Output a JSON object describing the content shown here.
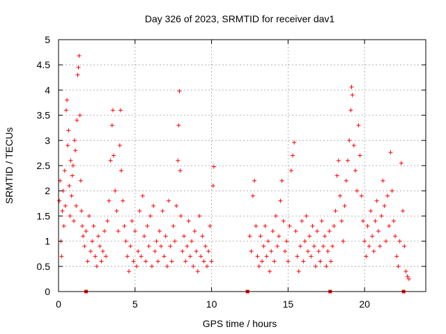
{
  "chart_data": {
    "type": "scatter",
    "title": "Day 326 of 2023, SRMTID for receiver dav1",
    "xlabel": "GPS time / hours",
    "ylabel": "SRMTID / TECUs",
    "xlim": [
      0,
      24
    ],
    "ylim": [
      0,
      5
    ],
    "x_ticks": [
      0,
      5,
      10,
      15,
      20
    ],
    "x_tick_labels": [
      "0",
      "5",
      "10",
      "15",
      "20"
    ],
    "y_ticks": [
      0,
      0.5,
      1,
      1.5,
      2,
      2.5,
      3,
      3.5,
      4,
      4.5,
      5
    ],
    "y_tick_labels": [
      "0",
      "0.5",
      "1",
      "1.5",
      "2",
      "2.5",
      "3",
      "3.5",
      "4",
      "4.5",
      "5"
    ],
    "grid": true,
    "marker": "+",
    "color": "#ff0000",
    "series": [
      {
        "name": "SRMTID",
        "points": [
          [
            0.05,
            1.8
          ],
          [
            0.1,
            2.2
          ],
          [
            0.15,
            1.0
          ],
          [
            0.2,
            0.7
          ],
          [
            0.25,
            1.6
          ],
          [
            0.3,
            2.0
          ],
          [
            0.35,
            1.3
          ],
          [
            0.4,
            2.4
          ],
          [
            0.45,
            1.7
          ],
          [
            0.5,
            3.6
          ],
          [
            0.55,
            3.8
          ],
          [
            0.6,
            2.9
          ],
          [
            0.65,
            3.2
          ],
          [
            0.7,
            2.1
          ],
          [
            0.75,
            1.5
          ],
          [
            0.8,
            2.6
          ],
          [
            0.85,
            1.9
          ],
          [
            0.9,
            2.3
          ],
          [
            0.95,
            2.5
          ],
          [
            1.0,
            1.4
          ],
          [
            1.05,
            3.0
          ],
          [
            1.1,
            2.8
          ],
          [
            1.15,
            1.7
          ],
          [
            1.2,
            3.4
          ],
          [
            1.25,
            4.3
          ],
          [
            1.3,
            4.45
          ],
          [
            1.35,
            4.68
          ],
          [
            1.4,
            3.5
          ],
          [
            1.45,
            2.2
          ],
          [
            1.5,
            1.6
          ],
          [
            1.55,
            1.3
          ],
          [
            1.6,
            1.1
          ],
          [
            1.7,
            0.9
          ],
          [
            1.8,
            1.2
          ],
          [
            1.9,
            0.6
          ],
          [
            2.0,
            1.5
          ],
          [
            2.1,
            0.8
          ],
          [
            2.2,
            1.0
          ],
          [
            2.3,
            1.3
          ],
          [
            2.4,
            0.7
          ],
          [
            2.5,
            0.5
          ],
          [
            2.6,
            1.1
          ],
          [
            2.7,
            0.9
          ],
          [
            2.8,
            0.6
          ],
          [
            2.9,
            0.8
          ],
          [
            3.0,
            1.2
          ],
          [
            3.1,
            0.7
          ],
          [
            3.2,
            1.4
          ],
          [
            3.3,
            1.8
          ],
          [
            3.4,
            2.6
          ],
          [
            3.5,
            3.3
          ],
          [
            3.55,
            3.6
          ],
          [
            3.6,
            2.7
          ],
          [
            3.7,
            2.0
          ],
          [
            3.8,
            1.6
          ],
          [
            3.9,
            1.2
          ],
          [
            4.0,
            2.9
          ],
          [
            4.05,
            3.6
          ],
          [
            4.1,
            2.4
          ],
          [
            4.2,
            1.8
          ],
          [
            4.3,
            1.3
          ],
          [
            4.4,
            1.0
          ],
          [
            4.5,
            0.7
          ],
          [
            4.6,
            0.4
          ],
          [
            4.7,
            0.9
          ],
          [
            4.8,
            1.4
          ],
          [
            4.9,
            0.6
          ],
          [
            5.0,
            1.2
          ],
          [
            5.1,
            0.5
          ],
          [
            5.2,
            0.8
          ],
          [
            5.3,
            1.6
          ],
          [
            5.4,
            0.7
          ],
          [
            5.5,
            1.9
          ],
          [
            5.6,
            1.1
          ],
          [
            5.7,
            0.6
          ],
          [
            5.8,
            1.3
          ],
          [
            5.9,
            0.9
          ],
          [
            6.0,
            1.5
          ],
          [
            6.1,
            0.5
          ],
          [
            6.2,
            1.7
          ],
          [
            6.3,
            0.8
          ],
          [
            6.4,
            1.0
          ],
          [
            6.5,
            0.6
          ],
          [
            6.6,
            1.2
          ],
          [
            6.7,
            0.9
          ],
          [
            6.8,
            1.6
          ],
          [
            6.9,
            0.7
          ],
          [
            7.0,
            1.1
          ],
          [
            7.1,
            0.5
          ],
          [
            7.2,
            1.8
          ],
          [
            7.3,
            0.9
          ],
          [
            7.4,
            0.6
          ],
          [
            7.5,
            1.3
          ],
          [
            7.6,
            1.0
          ],
          [
            7.7,
            1.7
          ],
          [
            7.8,
            2.6
          ],
          [
            7.85,
            3.3
          ],
          [
            7.9,
            3.98
          ],
          [
            7.95,
            2.4
          ],
          [
            8.0,
            1.5
          ],
          [
            8.1,
            0.8
          ],
          [
            8.2,
            1.1
          ],
          [
            8.3,
            0.6
          ],
          [
            8.4,
            0.9
          ],
          [
            8.5,
            1.4
          ],
          [
            8.6,
            0.7
          ],
          [
            8.7,
            1.0
          ],
          [
            8.8,
            0.5
          ],
          [
            8.9,
            1.2
          ],
          [
            9.0,
            0.8
          ],
          [
            9.1,
            0.4
          ],
          [
            9.2,
            1.5
          ],
          [
            9.3,
            0.7
          ],
          [
            9.4,
            1.1
          ],
          [
            9.5,
            0.6
          ],
          [
            9.6,
            0.9
          ],
          [
            9.7,
            0.5
          ],
          [
            9.8,
            0.8
          ],
          [
            9.9,
            1.3
          ],
          [
            10.0,
            0.6
          ],
          [
            10.1,
            2.1
          ],
          [
            10.15,
            2.48
          ],
          [
            12.5,
            1.1
          ],
          [
            12.6,
            0.8
          ],
          [
            12.7,
            1.9
          ],
          [
            12.8,
            2.2
          ],
          [
            12.9,
            1.3
          ],
          [
            13.0,
            0.7
          ],
          [
            13.1,
            0.5
          ],
          [
            13.2,
            1.1
          ],
          [
            13.3,
            0.6
          ],
          [
            13.4,
            0.9
          ],
          [
            13.5,
            1.3
          ],
          [
            13.6,
            0.7
          ],
          [
            13.7,
            1.0
          ],
          [
            13.8,
            0.4
          ],
          [
            13.9,
            0.8
          ],
          [
            14.0,
            1.2
          ],
          [
            14.1,
            0.6
          ],
          [
            14.2,
            1.5
          ],
          [
            14.3,
            0.9
          ],
          [
            14.4,
            1.1
          ],
          [
            14.5,
            1.8
          ],
          [
            14.6,
            2.2
          ],
          [
            14.7,
            1.4
          ],
          [
            14.8,
            0.8
          ],
          [
            14.9,
            1.0
          ],
          [
            15.0,
            0.6
          ],
          [
            15.1,
            1.3
          ],
          [
            15.2,
            2.4
          ],
          [
            15.3,
            2.7
          ],
          [
            15.4,
            2.96
          ],
          [
            15.5,
            1.2
          ],
          [
            15.6,
            0.7
          ],
          [
            15.7,
            0.4
          ],
          [
            15.8,
            0.9
          ],
          [
            15.9,
            1.4
          ],
          [
            16.0,
            0.6
          ],
          [
            16.1,
            1.0
          ],
          [
            16.2,
            1.5
          ],
          [
            16.3,
            0.8
          ],
          [
            16.4,
            1.1
          ],
          [
            16.5,
            0.7
          ],
          [
            16.6,
            1.3
          ],
          [
            16.7,
            0.9
          ],
          [
            16.8,
            0.5
          ],
          [
            16.9,
            1.2
          ],
          [
            17.0,
            0.8
          ],
          [
            17.1,
            0.6
          ],
          [
            17.2,
            1.4
          ],
          [
            17.3,
            0.9
          ],
          [
            17.4,
            1.1
          ],
          [
            17.5,
            0.5
          ],
          [
            17.6,
            0.8
          ],
          [
            17.7,
            1.2
          ],
          [
            17.8,
            0.6
          ],
          [
            17.9,
            0.9
          ],
          [
            18.0,
            1.3
          ],
          [
            18.1,
            1.6
          ],
          [
            18.2,
            2.3
          ],
          [
            18.3,
            2.6
          ],
          [
            18.4,
            1.9
          ],
          [
            18.5,
            1.4
          ],
          [
            18.6,
            1.0
          ],
          [
            18.7,
            1.7
          ],
          [
            18.8,
            2.2
          ],
          [
            18.9,
            2.6
          ],
          [
            19.0,
            3.0
          ],
          [
            19.1,
            3.6
          ],
          [
            19.15,
            4.06
          ],
          [
            19.2,
            3.9
          ],
          [
            19.3,
            2.9
          ],
          [
            19.4,
            2.4
          ],
          [
            19.5,
            2.0
          ],
          [
            19.6,
            3.3
          ],
          [
            19.7,
            2.7
          ],
          [
            19.8,
            1.9
          ],
          [
            19.9,
            1.4
          ],
          [
            20.0,
            1.0
          ],
          [
            20.1,
            0.7
          ],
          [
            20.2,
            1.3
          ],
          [
            20.3,
            0.9
          ],
          [
            20.4,
            1.6
          ],
          [
            20.5,
            1.1
          ],
          [
            20.6,
            0.8
          ],
          [
            20.7,
            1.4
          ],
          [
            20.8,
            1.8
          ],
          [
            20.9,
            1.2
          ],
          [
            21.0,
            0.9
          ],
          [
            21.1,
            1.5
          ],
          [
            21.2,
            2.2
          ],
          [
            21.3,
            1.7
          ],
          [
            21.4,
            1.0
          ],
          [
            21.5,
            1.9
          ],
          [
            21.6,
            1.3
          ],
          [
            21.7,
            2.76
          ],
          [
            21.8,
            2.0
          ],
          [
            21.9,
            1.4
          ],
          [
            22.0,
            1.1
          ],
          [
            22.1,
            0.7
          ],
          [
            22.2,
            0.5
          ],
          [
            22.3,
            1.0
          ],
          [
            22.4,
            2.55
          ],
          [
            22.5,
            1.6
          ],
          [
            22.6,
            0.9
          ],
          [
            22.7,
            0.4
          ],
          [
            22.8,
            0.3
          ],
          [
            22.9,
            0.25
          ]
        ]
      }
    ],
    "zero_markers_x": [
      1.8,
      12.35,
      17.75,
      22.55
    ]
  }
}
